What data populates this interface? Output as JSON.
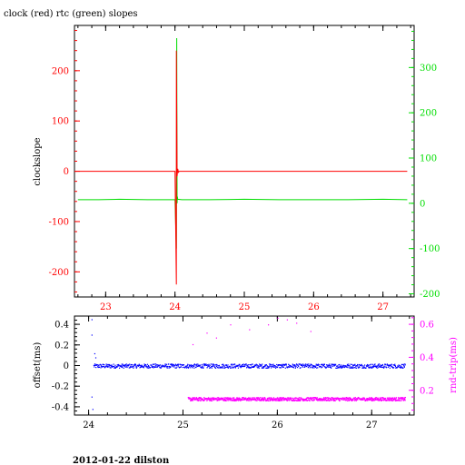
{
  "title": "clock (red) rtc (green) slopes",
  "footer": "2012-01-22 dilston",
  "colors": {
    "clock": "#ff0000",
    "rtc": "#00dd00",
    "offset": "#0000ff",
    "rndtrip": "#ff00ff",
    "axis_black": "#000000"
  },
  "chart_data": [
    {
      "type": "line",
      "title": "clock (red) rtc (green) slopes",
      "xlabel": "",
      "ylabel": "clockslope",
      "y2label": "",
      "xlim": [
        22.55,
        27.45
      ],
      "ylim": [
        -250,
        290
      ],
      "y2lim": [
        -207,
        393
      ],
      "x_ticks": [
        23,
        24,
        25,
        26,
        27
      ],
      "y_ticks": [
        -200,
        -100,
        0,
        100,
        200
      ],
      "y2_ticks": [
        -200,
        -100,
        0,
        100,
        200,
        300
      ],
      "grid": false,
      "series": [
        {
          "name": "clock",
          "axis": "left",
          "x": [
            22.55,
            22.9,
            23.4,
            23.9,
            24.0,
            24.02,
            24.02,
            24.03,
            24.04,
            24.05,
            24.06,
            24.5,
            25.0,
            25.5,
            26.0,
            26.5,
            27.0,
            27.35
          ],
          "y": [
            0,
            0,
            0,
            0,
            0,
            -225,
            240,
            -10,
            5,
            -2,
            0,
            0,
            0,
            0,
            0,
            0,
            0,
            0
          ]
        },
        {
          "name": "rtc",
          "axis": "right",
          "x": [
            22.6,
            22.9,
            23.2,
            23.6,
            23.9,
            24.0,
            24.02,
            24.025,
            24.03,
            24.035,
            24.04,
            24.1,
            24.5,
            25.0,
            25.5,
            26.0,
            26.5,
            27.0,
            27.35
          ],
          "y": [
            8,
            8,
            9,
            8,
            8,
            8,
            -100,
            365,
            0,
            15,
            9,
            8,
            8,
            9,
            8,
            8,
            8,
            9,
            8
          ]
        }
      ]
    },
    {
      "type": "scatter",
      "title": "",
      "xlabel": "",
      "ylabel": "offset(ms)",
      "y2label": "rnd-trip(ms)",
      "xlim": [
        23.85,
        27.45
      ],
      "ylim": [
        -0.48,
        0.48
      ],
      "y2lim": [
        0.05,
        0.65
      ],
      "x_ticks": [
        24,
        25,
        26,
        27
      ],
      "y_ticks": [
        -0.4,
        -0.2,
        0,
        0.2,
        0.4
      ],
      "y2_ticks": [
        0.2,
        0.4,
        0.6
      ],
      "grid": false,
      "series": [
        {
          "name": "offset",
          "axis": "left",
          "x_range": [
            24.05,
            27.35
          ],
          "baseline": 0.0,
          "spread": 0.02,
          "outliers": [
            {
              "x": 24.03,
              "y": 0.45
            },
            {
              "x": 24.03,
              "y": 0.3
            },
            {
              "x": 24.03,
              "y": -0.3
            },
            {
              "x": 24.04,
              "y": -0.42
            },
            {
              "x": 24.06,
              "y": 0.12
            },
            {
              "x": 24.07,
              "y": 0.08
            }
          ]
        },
        {
          "name": "rnd-trip",
          "axis": "right",
          "x_range": [
            25.05,
            27.35
          ],
          "baseline": 0.15,
          "spread": 0.01,
          "outliers": [
            {
              "x": 25.25,
              "y": 0.55
            },
            {
              "x": 25.5,
              "y": 0.6
            },
            {
              "x": 25.7,
              "y": 0.57
            },
            {
              "x": 25.9,
              "y": 0.6
            },
            {
              "x": 26.1,
              "y": 0.63
            },
            {
              "x": 26.2,
              "y": 0.61
            },
            {
              "x": 26.35,
              "y": 0.56
            },
            {
              "x": 26.0,
              "y": 0.64
            },
            {
              "x": 25.35,
              "y": 0.52
            },
            {
              "x": 25.1,
              "y": 0.48
            }
          ]
        }
      ]
    }
  ]
}
